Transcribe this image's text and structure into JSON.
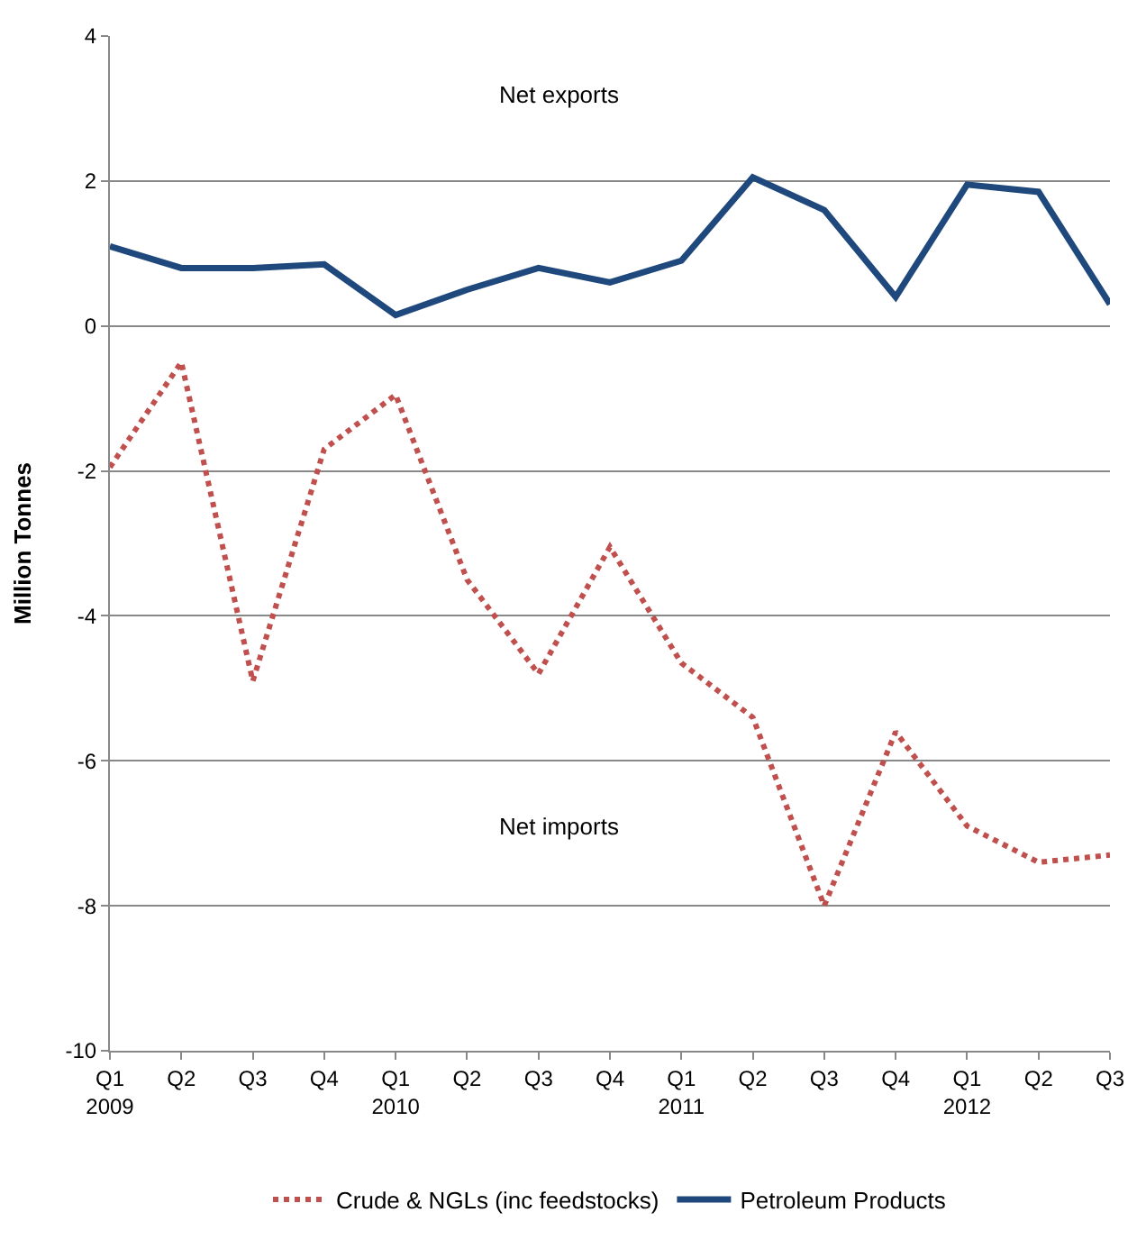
{
  "chart_data": {
    "type": "line",
    "ylabel": "Million Tonnes",
    "categories": [
      "Q1\n2009",
      "Q2",
      "Q3",
      "Q4",
      "Q1\n2010",
      "Q2",
      "Q3",
      "Q4",
      "Q1\n2011",
      "Q2",
      "Q3",
      "Q4",
      "Q1\n2012",
      "Q2",
      "Q3"
    ],
    "series": [
      {
        "name": "Crude & NGLs (inc feedstocks)",
        "color": "#c0504d",
        "line_style": "dotted",
        "values": [
          -1.95,
          -0.5,
          -4.9,
          -1.7,
          -0.95,
          -3.5,
          -4.8,
          -3.05,
          -4.65,
          -5.4,
          -8.0,
          -5.6,
          -6.9,
          -7.4,
          -7.3
        ]
      },
      {
        "name": "Petroleum Products",
        "color": "#1f497d",
        "line_style": "solid",
        "values": [
          1.1,
          0.8,
          0.8,
          0.85,
          0.15,
          0.5,
          0.8,
          0.6,
          0.9,
          2.05,
          1.6,
          0.4,
          1.95,
          1.85,
          0.3
        ]
      }
    ],
    "ylim": [
      -10,
      4
    ],
    "yticks": [
      -10,
      -8,
      -6,
      -4,
      -2,
      0,
      2,
      4
    ],
    "grid": "y",
    "legend": "bottom",
    "marker": "none",
    "annotations": [
      "Net exports",
      "Net imports"
    ]
  }
}
